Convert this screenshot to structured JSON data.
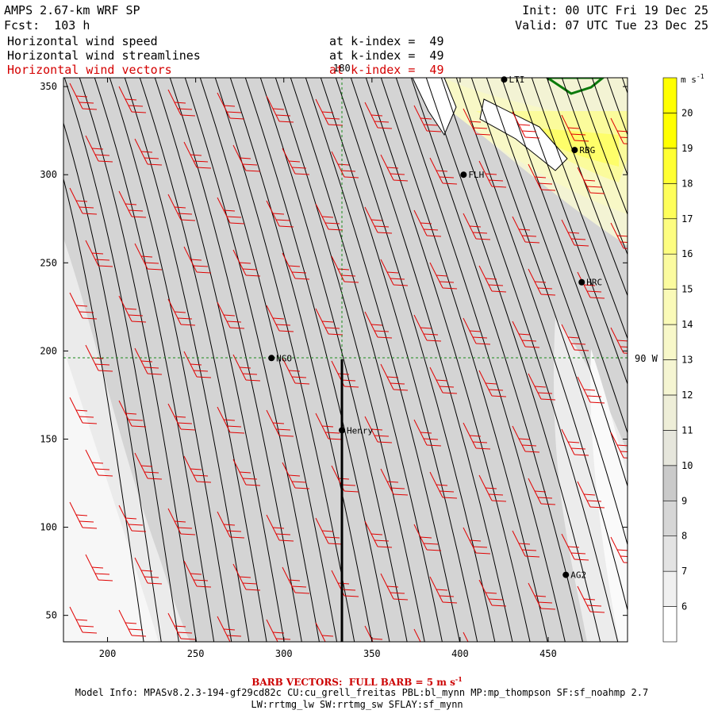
{
  "header": {
    "model": "AMPS 2.67-km WRF SP",
    "forecast": "Fcst:  103 h",
    "init": "Init: 00 UTC Fri 19 Dec 25",
    "valid": "Valid: 07 UTC Tue 23 Dec 25",
    "fields": [
      {
        "name": "Horizontal wind speed",
        "level": "at k-index =  49"
      },
      {
        "name": "Horizontal wind streamlines",
        "level": "at k-index =  49"
      },
      {
        "name": "Horizontal wind vectors",
        "level": "at k-index =  49"
      }
    ]
  },
  "map": {
    "x_ticks": [
      "200",
      "250",
      "300",
      "350",
      "400",
      "450"
    ],
    "y_ticks": [
      "50",
      "100",
      "150",
      "200",
      "250",
      "300",
      "350"
    ],
    "x_range": [
      175,
      495
    ],
    "y_range": [
      35,
      355
    ],
    "meridian_label": "180",
    "parallel_label": "90 W",
    "stations": [
      {
        "name": "NGO",
        "x": 293,
        "y": 196
      },
      {
        "name": "Henry",
        "x": 333,
        "y": 155
      },
      {
        "name": "FLH",
        "x": 402,
        "y": 300
      },
      {
        "name": "RBG",
        "x": 465,
        "y": 314
      },
      {
        "name": "HRC",
        "x": 469,
        "y": 239
      },
      {
        "name": "AG2",
        "x": 460,
        "y": 73
      },
      {
        "name": "LTI",
        "x": 425,
        "y": 354
      }
    ]
  },
  "colorbar": {
    "units": "m s",
    "units_exp": "-1",
    "levels": [
      "6",
      "7",
      "8",
      "9",
      "10",
      "11",
      "12",
      "13",
      "14",
      "15",
      "16",
      "17",
      "18",
      "19",
      "20"
    ],
    "colors": [
      "#ffffff",
      "#f0f0f0",
      "#e3e3e3",
      "#d6d6d6",
      "#cacaca",
      "#e6e6dc",
      "#eeeed8",
      "#f5f5d2",
      "#f8f8c9",
      "#fafab8",
      "#fbfb9f",
      "#fdfd80",
      "#fefe5a",
      "#ffff32",
      "#ffff00",
      "#ffff00"
    ]
  },
  "footer": {
    "barb_note": "BARB VECTORS:  FULL BARB = 5 m s",
    "barb_note_exp": "-1",
    "model_info": "Model Info: MPASv8.2.3-194-gf29cd82c CU:cu_grell_freitas PBL:bl_mynn MP:mp_thompson SF:sf_noahmp 2.7",
    "model_info_2": "LW:rrtmg_lw SW:rrtmg_sw SFLAY:sf_mynn"
  }
}
